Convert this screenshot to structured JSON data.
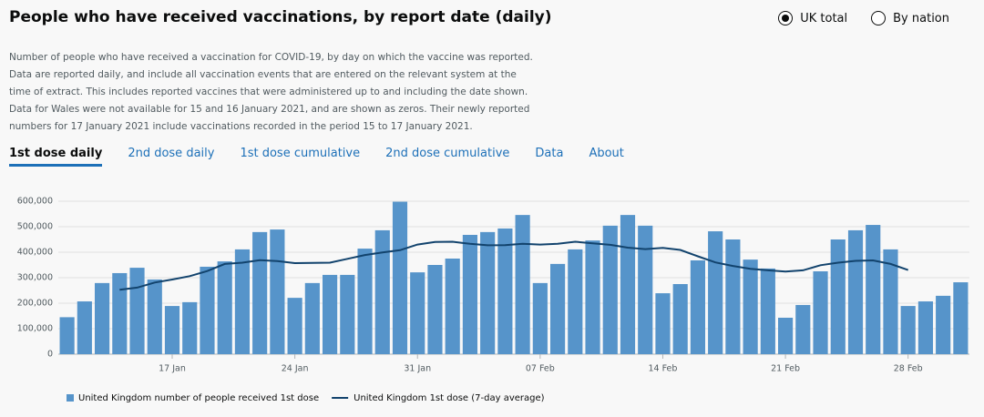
{
  "header": {
    "title": "People who have received vaccinations, by report date (daily)"
  },
  "radio_options": [
    {
      "label": "UK total",
      "selected": true
    },
    {
      "label": "By nation",
      "selected": false
    }
  ],
  "description": [
    "Number of people who have received a vaccination for COVID-19, by day on which the vaccine was reported.",
    "Data are reported daily, and include all vaccination events that are entered on the relevant system at the",
    "time of extract. This includes reported vaccines that were administered up to and including the date shown.",
    "Data for Wales were not available for 15 and 16 January 2021, and are shown as zeros. Their newly reported",
    "numbers for 17 January 2021 include vaccinations recorded in the period 15 to 17 January 2021."
  ],
  "tabs": [
    {
      "label": "1st dose daily",
      "active": true
    },
    {
      "label": "2nd dose daily",
      "active": false
    },
    {
      "label": "1st dose cumulative",
      "active": false
    },
    {
      "label": "2nd dose cumulative",
      "active": false
    },
    {
      "label": "Data",
      "active": false
    },
    {
      "label": "About",
      "active": false
    }
  ],
  "chart_data": {
    "type": "bar",
    "categories": [
      null,
      null,
      null,
      null,
      null,
      null,
      "17 Jan",
      null,
      null,
      null,
      null,
      null,
      null,
      "24 Jan",
      null,
      null,
      null,
      null,
      null,
      null,
      "31 Jan",
      null,
      null,
      null,
      null,
      null,
      null,
      "07 Feb",
      null,
      null,
      null,
      null,
      null,
      null,
      "14 Feb",
      null,
      null,
      null,
      null,
      null,
      null,
      "21 Feb",
      null,
      null,
      null,
      null,
      null,
      null,
      "28 Feb",
      null,
      null,
      null
    ],
    "series": [
      {
        "name": "United Kingdom number of people received 1st dose",
        "color": "#5694ca",
        "type": "bar",
        "values": [
          145000,
          207000,
          279000,
          318000,
          339000,
          293000,
          189000,
          204000,
          343000,
          364000,
          411000,
          479000,
          489000,
          221000,
          279000,
          311000,
          311000,
          414000,
          486000,
          598000,
          321000,
          350000,
          375000,
          468000,
          479000,
          493000,
          546000,
          279000,
          354000,
          411000,
          446000,
          504000,
          546000,
          504000,
          239000,
          275000,
          368000,
          482000,
          450000,
          371000,
          336000,
          143000,
          193000,
          325000,
          450000,
          486000,
          507000,
          411000,
          189000,
          207000,
          229000,
          282000
        ]
      },
      {
        "name": "United Kingdom 1st dose (7-day average)",
        "color": "#12436d",
        "type": "line",
        "values": [
          null,
          null,
          null,
          253000,
          261000,
          281000,
          293000,
          306000,
          326000,
          354000,
          359000,
          369000,
          365000,
          357000,
          358000,
          359000,
          374000,
          389000,
          399000,
          408000,
          430000,
          440000,
          441000,
          433000,
          427000,
          428000,
          433000,
          430000,
          433000,
          441000,
          435000,
          429000,
          418000,
          412000,
          417000,
          409000,
          384000,
          360000,
          346000,
          335000,
          329000,
          324000,
          329000,
          349000,
          359000,
          366000,
          368000,
          354000,
          330000,
          null,
          null,
          null
        ]
      }
    ],
    "ylim": [
      0,
      600000
    ],
    "yticks": [
      0,
      {
        "value": 100000,
        "label": "100,000"
      },
      {
        "value": 200000,
        "label": "200,000"
      },
      {
        "value": 300000,
        "label": "300,000"
      },
      {
        "value": 400000,
        "label": "400,000"
      },
      {
        "value": 500000,
        "label": "500,000"
      },
      {
        "value": 600000,
        "label": "600,000"
      }
    ],
    "grid": true
  }
}
